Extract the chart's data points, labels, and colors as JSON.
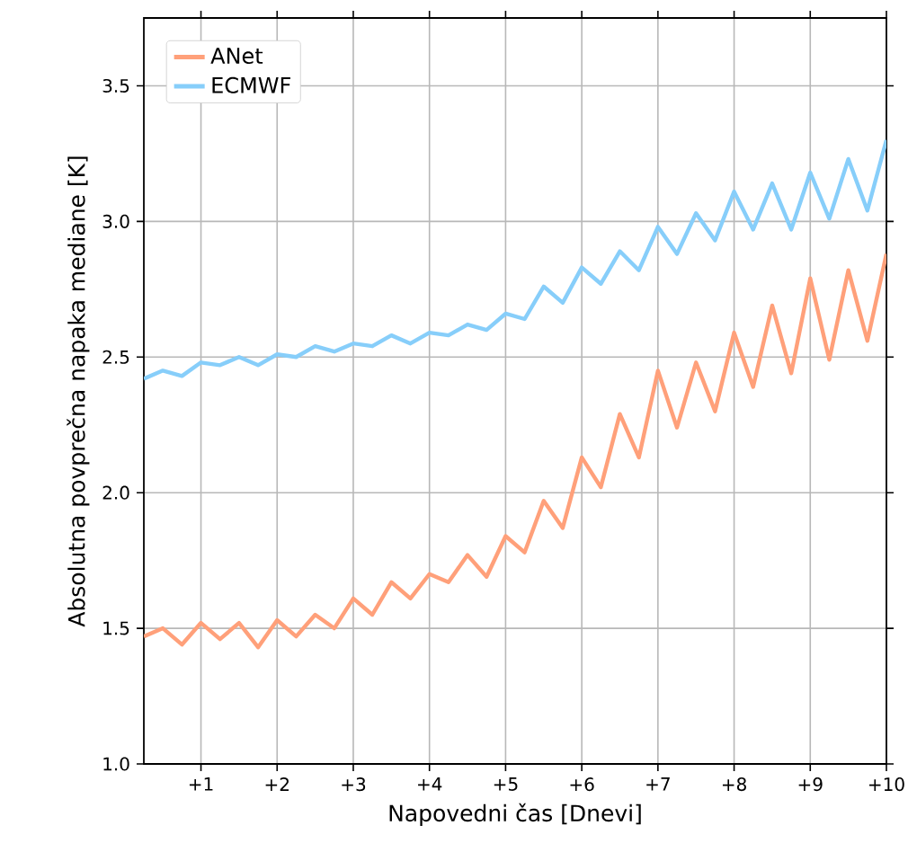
{
  "chart_data": {
    "type": "line",
    "xlabel": "Napovedni čas [Dnevi]",
    "ylabel": "Absolutna povprečna napaka mediane [K]",
    "x": [
      0.25,
      0.5,
      0.75,
      1,
      1.25,
      1.5,
      1.75,
      2,
      2.25,
      2.5,
      2.75,
      3,
      3.25,
      3.5,
      3.75,
      4,
      4.25,
      4.5,
      4.75,
      5,
      5.25,
      5.5,
      5.75,
      6,
      6.25,
      6.5,
      6.75,
      7,
      7.25,
      7.5,
      7.75,
      8,
      8.25,
      8.5,
      8.75,
      9,
      9.25,
      9.5,
      9.75,
      10
    ],
    "series": [
      {
        "name": "ANet",
        "color": "#ffa07a",
        "values": [
          1.47,
          1.5,
          1.44,
          1.52,
          1.46,
          1.52,
          1.43,
          1.53,
          1.47,
          1.55,
          1.5,
          1.61,
          1.55,
          1.67,
          1.61,
          1.7,
          1.67,
          1.77,
          1.69,
          1.84,
          1.78,
          1.97,
          1.87,
          2.13,
          2.02,
          2.29,
          2.13,
          2.45,
          2.24,
          2.48,
          2.3,
          2.59,
          2.39,
          2.69,
          2.44,
          2.79,
          2.49,
          2.82,
          2.56,
          2.88
        ]
      },
      {
        "name": "ECMWF",
        "color": "#87cefa",
        "values": [
          2.42,
          2.45,
          2.43,
          2.48,
          2.47,
          2.5,
          2.47,
          2.51,
          2.5,
          2.54,
          2.52,
          2.55,
          2.54,
          2.58,
          2.55,
          2.59,
          2.58,
          2.62,
          2.6,
          2.66,
          2.64,
          2.76,
          2.7,
          2.83,
          2.77,
          2.89,
          2.82,
          2.98,
          2.88,
          3.03,
          2.93,
          3.11,
          2.97,
          3.14,
          2.97,
          3.18,
          3.01,
          3.23,
          3.04,
          3.3
        ]
      }
    ],
    "xlim": [
      0.25,
      10
    ],
    "ylim": [
      1.0,
      3.75
    ],
    "xticks": [
      {
        "value": 1,
        "label": "+1"
      },
      {
        "value": 2,
        "label": "+2"
      },
      {
        "value": 3,
        "label": "+3"
      },
      {
        "value": 4,
        "label": "+4"
      },
      {
        "value": 5,
        "label": "+5"
      },
      {
        "value": 6,
        "label": "+6"
      },
      {
        "value": 7,
        "label": "+7"
      },
      {
        "value": 8,
        "label": "+8"
      },
      {
        "value": 9,
        "label": "+9"
      },
      {
        "value": 10,
        "label": "+10"
      }
    ],
    "yticks": [
      {
        "value": 1.0,
        "label": "1.0"
      },
      {
        "value": 1.5,
        "label": "1.5"
      },
      {
        "value": 2.0,
        "label": "2.0"
      },
      {
        "value": 2.5,
        "label": "2.5"
      },
      {
        "value": 3.0,
        "label": "3.0"
      },
      {
        "value": 3.5,
        "label": "3.5"
      }
    ],
    "grid": true,
    "legend": "top left",
    "marker": "none",
    "line_style": "solid"
  }
}
